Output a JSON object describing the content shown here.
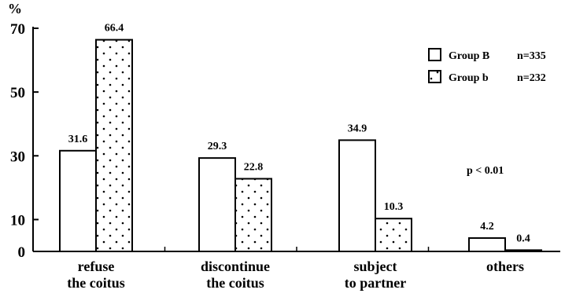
{
  "chart_data": {
    "type": "bar",
    "ylabel": "%",
    "ylim": [
      0,
      70
    ],
    "yticks": [
      "70",
      "50",
      "30",
      "10",
      "0"
    ],
    "yticks_values": [
      70,
      50,
      30,
      10,
      0
    ],
    "categories": [
      [
        "refuse",
        "the coitus"
      ],
      [
        "discontinue",
        "the coitus"
      ],
      [
        "subject",
        "to partner"
      ],
      [
        "others"
      ]
    ],
    "series": [
      {
        "name": "Group B",
        "n": "n=335",
        "pattern": "open",
        "values": [
          31.6,
          29.3,
          34.9,
          4.2
        ],
        "labels": [
          "31.6",
          "29.3",
          "34.9",
          "4.2"
        ]
      },
      {
        "name": "Group b",
        "n": "n=232",
        "pattern": "dotted",
        "values": [
          66.4,
          22.8,
          10.3,
          0.4
        ],
        "labels": [
          "66.4",
          "22.8",
          "10.3",
          "0.4"
        ]
      }
    ],
    "annotation": "p < 0.01",
    "legend_position": "top-right",
    "grid": false
  }
}
